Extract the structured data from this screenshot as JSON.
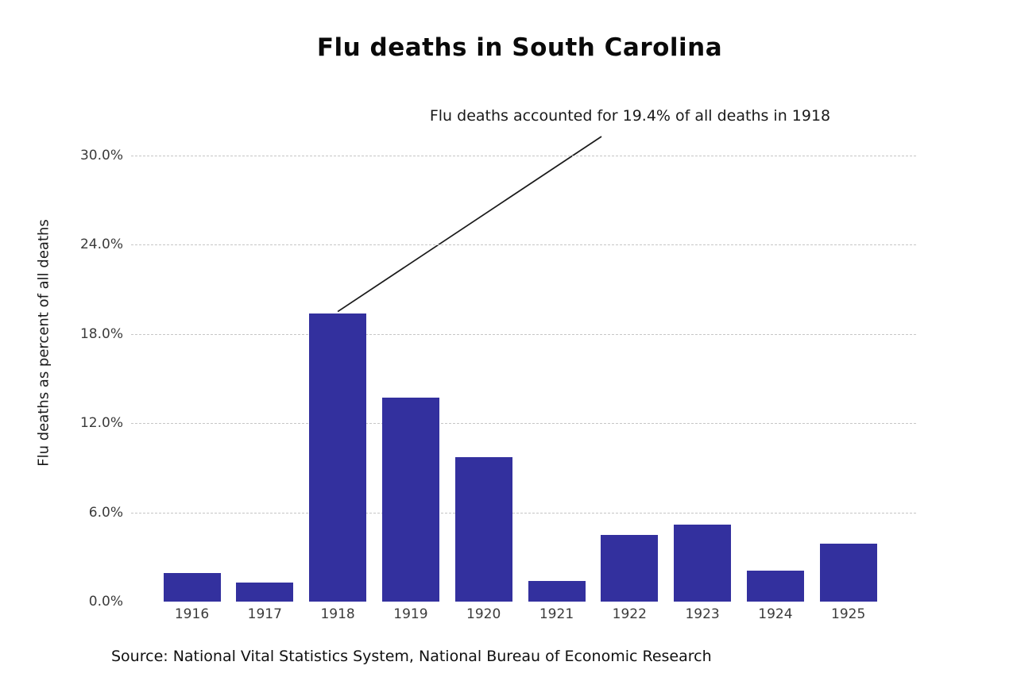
{
  "chart": {
    "title": "Flu deaths in South Carolina",
    "annotation_text": "Flu deaths accounted for 19.4% of all deaths in 1918",
    "y_axis_label": "Flu deaths as percent of all deaths",
    "source": "Source: National Vital Statistics System, National Bureau of Economic Research"
  },
  "chart_data": {
    "type": "bar",
    "title": "Flu deaths in South Carolina",
    "categories": [
      "1916",
      "1917",
      "1918",
      "1919",
      "1920",
      "1921",
      "1922",
      "1923",
      "1924",
      "1925"
    ],
    "values": [
      1.9,
      1.3,
      19.4,
      13.7,
      9.7,
      1.4,
      4.5,
      5.2,
      2.1,
      3.9
    ],
    "xlabel": "",
    "ylabel": "Flu deaths as percent of all deaths",
    "ylim": [
      0,
      30
    ],
    "yticks": [
      0,
      6,
      12,
      18,
      24,
      30
    ],
    "ytick_labels": [
      "0.0%",
      "6.0%",
      "12.0%",
      "18.0%",
      "24.0%",
      "30.0%"
    ],
    "grid": "horizontal-dashed",
    "legend": "none",
    "bar_color": "#33309E",
    "annotation": {
      "text": "Flu deaths accounted for 19.4% of all deaths in 1918",
      "target_category": "1918",
      "target_value": 19.4
    },
    "source_note": "Source: National Vital Statistics System, National Bureau of Economic Research"
  },
  "colors": {
    "bar": "#33309E",
    "grid": "#c6c6c6",
    "tick_text": "#3b3b3b",
    "text": "#111111",
    "annotation_line": "#1a1a1a",
    "background": "#ffffff"
  }
}
